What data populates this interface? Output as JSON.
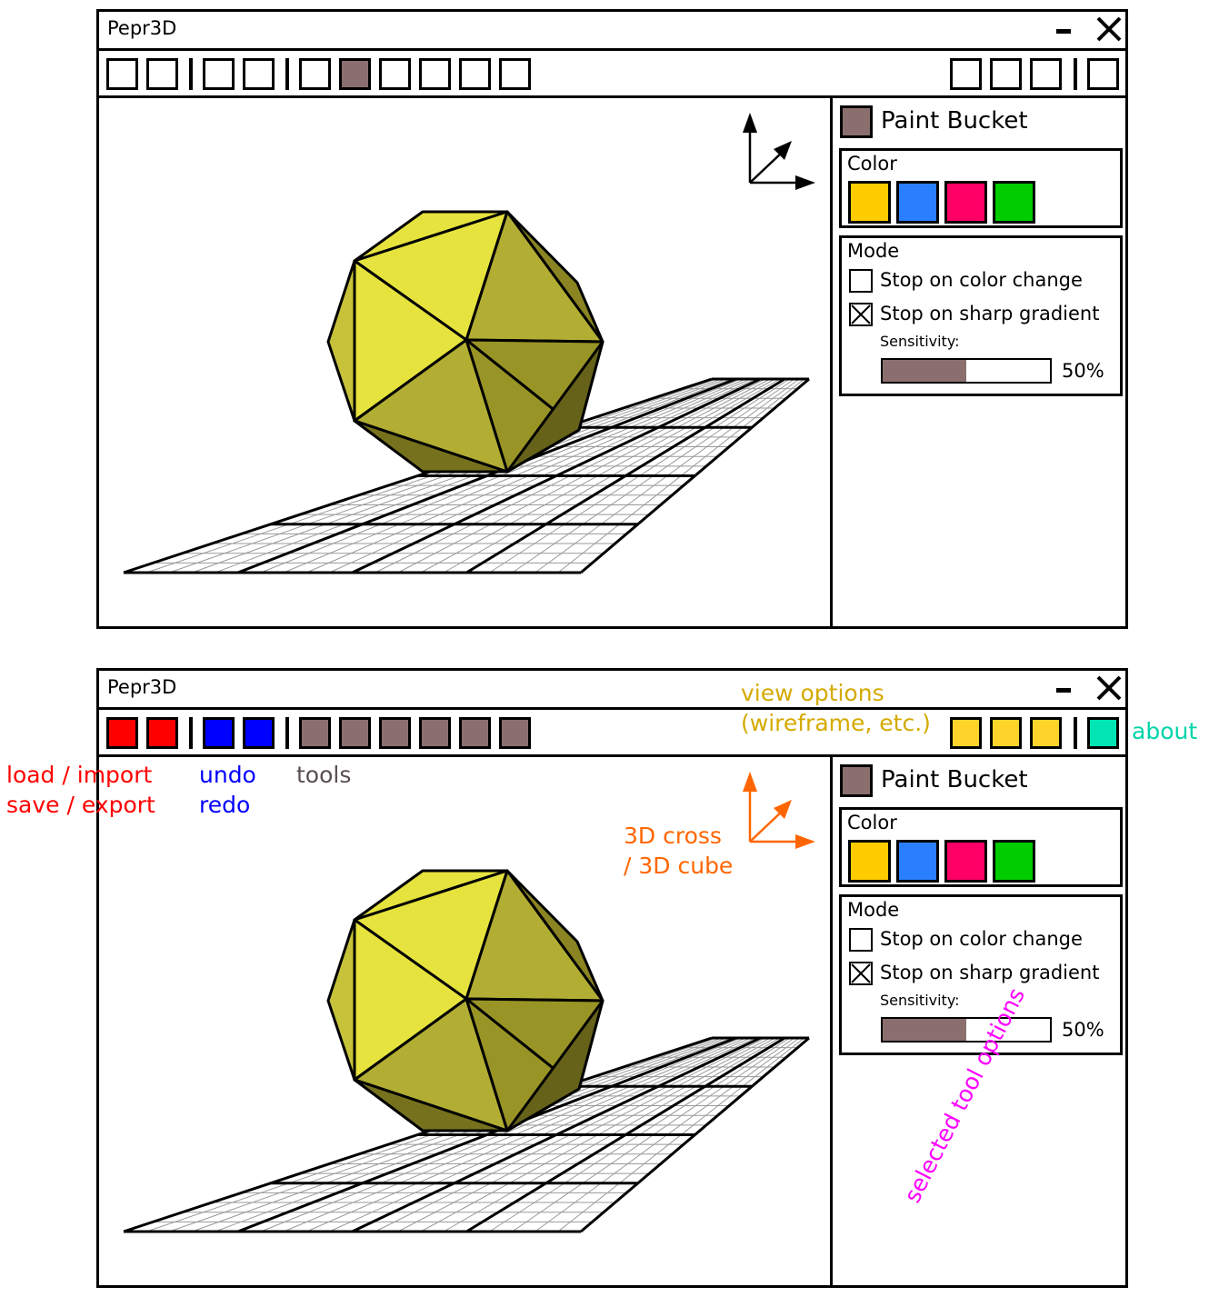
{
  "app_title": "Pepr3D",
  "tool_panel": {
    "tool_name": "Paint Bucket",
    "tool_color": "#8b6f6e",
    "color_section": {
      "label": "Color",
      "swatches": [
        "#ffcc00",
        "#2a7fff",
        "#ff0066",
        "#00cc00"
      ]
    },
    "mode_section": {
      "label": "Mode",
      "options": [
        {
          "label": "Stop on color change",
          "checked": false
        },
        {
          "label": "Stop on sharp gradient",
          "checked": true
        }
      ],
      "sensitivity_label": "Sensitivity:",
      "sensitivity_value": 0.5,
      "sensitivity_text": "50%"
    }
  },
  "toolbar_colors": {
    "file": "#ff0000",
    "history": "#0000ff",
    "tools": "#8b6f6e",
    "view": "#ffd42a",
    "about": "#00e5b3"
  },
  "annotations": {
    "file": [
      "load / import",
      "save / export"
    ],
    "history": [
      "undo",
      "redo"
    ],
    "tools": "tools",
    "view": [
      "view options",
      "(wireframe, etc.)"
    ],
    "about": "about",
    "axes": [
      "3D cross",
      "/ 3D cube"
    ],
    "options": "selected tool options"
  },
  "annotation_colors": {
    "file": "#ff0000",
    "history": "#0000ff",
    "tools": "#5a4e4e",
    "view": "#d4aa00",
    "about": "#00d4aa",
    "axes": "#ff6600",
    "options": "#ff00ff"
  }
}
